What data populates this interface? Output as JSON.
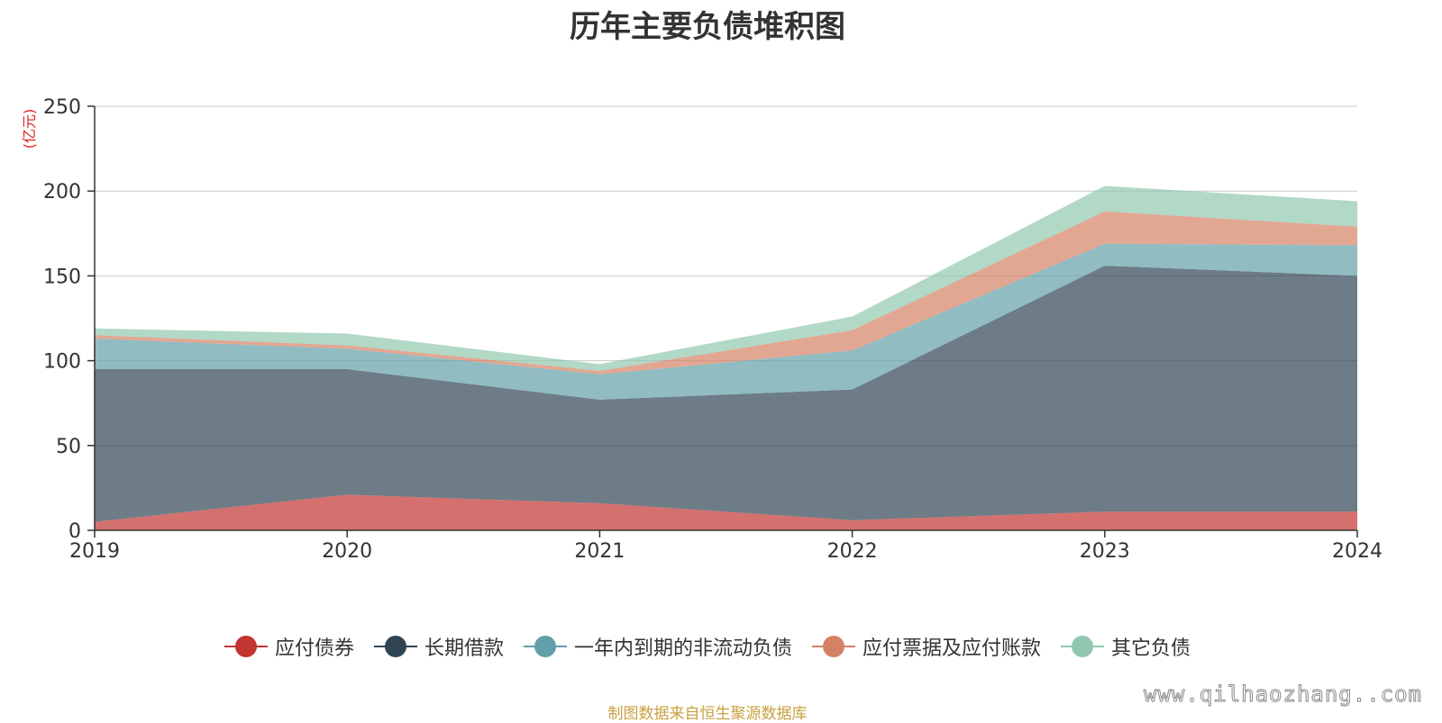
{
  "chart_data": {
    "type": "area",
    "stacked": true,
    "title": "历年主要负债堆积图",
    "unit_label": "(亿元)",
    "x": [
      "2019",
      "2020",
      "2021",
      "2022",
      "2023",
      "2024"
    ],
    "ylim": [
      0,
      250
    ],
    "yticks": [
      "0",
      "50",
      "100",
      "150",
      "200",
      "250"
    ],
    "grid": true,
    "legend_position": "bottom",
    "series": [
      {
        "name": "应付债券",
        "color": "#c23531",
        "values": [
          5,
          21,
          16,
          6,
          11,
          11
        ]
      },
      {
        "name": "长期借款",
        "color": "#2f4554",
        "values": [
          90,
          74,
          61,
          77,
          145,
          139
        ]
      },
      {
        "name": "一年内到期的非流动负债",
        "color": "#61a0a8",
        "values": [
          18,
          12,
          15,
          23,
          13,
          18
        ]
      },
      {
        "name": "应付票据及应付账款",
        "color": "#d48265",
        "values": [
          2,
          2,
          2,
          12,
          19,
          11
        ]
      },
      {
        "name": "其它负债",
        "color": "#91c7ae",
        "values": [
          4,
          7,
          4,
          8,
          15,
          15
        ]
      }
    ]
  },
  "footer": {
    "source_note": "制图数据来自恒生聚源数据库",
    "watermark": "www.qilhaozhang..com"
  }
}
